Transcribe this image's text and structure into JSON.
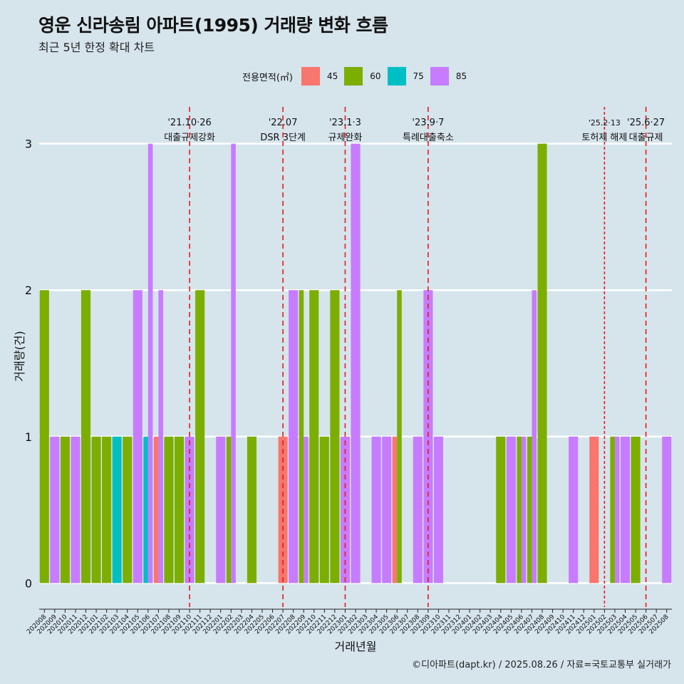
{
  "title": "영운 신라송림 아파트(1995) 거래량 변화 흐름",
  "subtitle": "최근 5년 한정 확대 차트",
  "caption": "©디아파트(dapt.kr) / 2025.08.26 / 자료=국토교통부 실거래가",
  "chart_data": {
    "type": "bar",
    "xlabel": "거래년월",
    "ylabel": "거래량(건)",
    "ylim": [
      -0.12,
      3.3
    ],
    "yticks": [
      0,
      1,
      2,
      3
    ],
    "grid": true,
    "legend": {
      "title": "전용면적(㎡)",
      "position": "top",
      "entries": [
        {
          "name": "45",
          "color": "#F8766D"
        },
        {
          "name": "60",
          "color": "#7CAE00"
        },
        {
          "name": "75",
          "color": "#00BFC4"
        },
        {
          "name": "85",
          "color": "#C77CFF"
        }
      ]
    },
    "categories": [
      "202008",
      "202009",
      "202010",
      "202011",
      "202012",
      "202101",
      "202102",
      "202103",
      "202104",
      "202105",
      "202106",
      "202107",
      "202108",
      "202109",
      "202110",
      "202111",
      "202112",
      "202201",
      "202202",
      "202203",
      "202204",
      "202205",
      "202206",
      "202207",
      "202208",
      "202209",
      "202210",
      "202211",
      "202212",
      "202301",
      "202302",
      "202303",
      "202304",
      "202305",
      "202306",
      "202307",
      "202308",
      "202309",
      "202310",
      "202311",
      "202312",
      "202401",
      "202402",
      "202403",
      "202404",
      "202405",
      "202406",
      "202407",
      "202408",
      "202409",
      "202410",
      "202411",
      "202412",
      "202501",
      "202502",
      "202503",
      "202504",
      "202505",
      "202506",
      "202507",
      "202508"
    ],
    "bars": [
      {
        "month": "202008",
        "45": 0,
        "60": 2,
        "75": 0,
        "85": 0
      },
      {
        "month": "202009",
        "45": 0,
        "60": 0,
        "75": 0,
        "85": 1
      },
      {
        "month": "202010",
        "45": 0,
        "60": 1,
        "75": 0,
        "85": 0
      },
      {
        "month": "202011",
        "45": 0,
        "60": 0,
        "75": 0,
        "85": 1
      },
      {
        "month": "202012",
        "45": 0,
        "60": 2,
        "75": 0,
        "85": 0
      },
      {
        "month": "202101",
        "45": 0,
        "60": 1,
        "75": 0,
        "85": 0
      },
      {
        "month": "202102",
        "45": 0,
        "60": 1,
        "75": 0,
        "85": 0
      },
      {
        "month": "202103",
        "45": 0,
        "60": 0,
        "75": 1,
        "85": 0
      },
      {
        "month": "202104",
        "45": 0,
        "60": 1,
        "75": 0,
        "85": 0
      },
      {
        "month": "202105",
        "45": 0,
        "60": 0,
        "75": 0,
        "85": 2
      },
      {
        "month": "202106",
        "45": 0,
        "60": 0,
        "75": 1,
        "85": 3
      },
      {
        "month": "202107",
        "45": 1,
        "60": 0,
        "75": 0,
        "85": 2
      },
      {
        "month": "202108",
        "45": 0,
        "60": 1,
        "75": 0,
        "85": 0
      },
      {
        "month": "202109",
        "45": 0,
        "60": 1,
        "75": 0,
        "85": 0
      },
      {
        "month": "202110",
        "45": 0,
        "60": 0,
        "75": 0,
        "85": 1
      },
      {
        "month": "202111",
        "45": 0,
        "60": 2,
        "75": 0,
        "85": 0
      },
      {
        "month": "202112",
        "45": 0,
        "60": 0,
        "75": 0,
        "85": 0
      },
      {
        "month": "202201",
        "45": 0,
        "60": 0,
        "75": 0,
        "85": 1
      },
      {
        "month": "202202",
        "45": 0,
        "60": 1,
        "75": 0,
        "85": 3
      },
      {
        "month": "202203",
        "45": 0,
        "60": 0,
        "75": 0,
        "85": 0
      },
      {
        "month": "202204",
        "45": 0,
        "60": 1,
        "75": 0,
        "85": 0
      },
      {
        "month": "202205",
        "45": 0,
        "60": 0,
        "75": 0,
        "85": 0
      },
      {
        "month": "202206",
        "45": 0,
        "60": 0,
        "75": 0,
        "85": 0
      },
      {
        "month": "202207",
        "45": 1,
        "60": 0,
        "75": 0,
        "85": 0
      },
      {
        "month": "202208",
        "45": 0,
        "60": 0,
        "75": 0,
        "85": 2
      },
      {
        "month": "202209",
        "45": 0,
        "60": 2,
        "75": 0,
        "85": 1
      },
      {
        "month": "202210",
        "45": 0,
        "60": 2,
        "75": 0,
        "85": 0
      },
      {
        "month": "202211",
        "45": 0,
        "60": 1,
        "75": 0,
        "85": 0
      },
      {
        "month": "202212",
        "45": 0,
        "60": 2,
        "75": 0,
        "85": 0
      },
      {
        "month": "202301",
        "45": 0,
        "60": 0,
        "75": 0,
        "85": 1
      },
      {
        "month": "202302",
        "45": 0,
        "60": 0,
        "75": 0,
        "85": 3
      },
      {
        "month": "202303",
        "45": 0,
        "60": 0,
        "75": 0,
        "85": 0
      },
      {
        "month": "202304",
        "45": 0,
        "60": 0,
        "75": 0,
        "85": 1
      },
      {
        "month": "202305",
        "45": 0,
        "60": 0,
        "75": 0,
        "85": 1
      },
      {
        "month": "202306",
        "45": 1,
        "60": 2,
        "75": 0,
        "85": 0
      },
      {
        "month": "202307",
        "45": 0,
        "60": 0,
        "75": 0,
        "85": 0
      },
      {
        "month": "202308",
        "45": 0,
        "60": 0,
        "75": 0,
        "85": 1
      },
      {
        "month": "202309",
        "45": 0,
        "60": 0,
        "75": 0,
        "85": 2
      },
      {
        "month": "202310",
        "45": 0,
        "60": 0,
        "75": 0,
        "85": 1
      },
      {
        "month": "202311",
        "45": 0,
        "60": 0,
        "75": 0,
        "85": 0
      },
      {
        "month": "202312",
        "45": 0,
        "60": 0,
        "75": 0,
        "85": 0
      },
      {
        "month": "202401",
        "45": 0,
        "60": 0,
        "75": 0,
        "85": 0
      },
      {
        "month": "202402",
        "45": 0,
        "60": 0,
        "75": 0,
        "85": 0
      },
      {
        "month": "202403",
        "45": 0,
        "60": 0,
        "75": 0,
        "85": 0
      },
      {
        "month": "202404",
        "45": 0,
        "60": 1,
        "75": 0,
        "85": 0
      },
      {
        "month": "202405",
        "45": 0,
        "60": 0,
        "75": 0,
        "85": 1
      },
      {
        "month": "202406",
        "45": 0,
        "60": 1,
        "75": 0,
        "85": 1
      },
      {
        "month": "202407",
        "45": 0,
        "60": 1,
        "75": 0,
        "85": 2
      },
      {
        "month": "202408",
        "45": 0,
        "60": 3,
        "75": 0,
        "85": 0
      },
      {
        "month": "202409",
        "45": 0,
        "60": 0,
        "75": 0,
        "85": 0
      },
      {
        "month": "202410",
        "45": 0,
        "60": 0,
        "75": 0,
        "85": 0
      },
      {
        "month": "202411",
        "45": 0,
        "60": 0,
        "75": 0,
        "85": 1
      },
      {
        "month": "202412",
        "45": 0,
        "60": 0,
        "75": 0,
        "85": 0
      },
      {
        "month": "202501",
        "45": 1,
        "60": 0,
        "75": 0,
        "85": 0
      },
      {
        "month": "202502",
        "45": 0,
        "60": 0,
        "75": 0,
        "85": 0
      },
      {
        "month": "202503",
        "45": 0,
        "60": 1,
        "75": 0,
        "85": 1
      },
      {
        "month": "202504",
        "45": 0,
        "60": 0,
        "75": 0,
        "85": 1
      },
      {
        "month": "202505",
        "45": 0,
        "60": 1,
        "75": 0,
        "85": 0
      },
      {
        "month": "202506",
        "45": 0,
        "60": 0,
        "75": 0,
        "85": 0
      },
      {
        "month": "202507",
        "45": 0,
        "60": 0,
        "75": 0,
        "85": 0
      },
      {
        "month": "202508",
        "45": 0,
        "60": 0,
        "75": 0,
        "85": 1
      }
    ],
    "annotations": [
      {
        "month": "202110",
        "date": "'21.10·26",
        "label": "대출규제강화",
        "dash": "long"
      },
      {
        "month": "202207",
        "date": "'22.07",
        "label": "DSR 3단계",
        "dash": "long"
      },
      {
        "month": "202301",
        "date": "'23.1·3",
        "label": "규제완화",
        "dash": "long"
      },
      {
        "month": "202309",
        "date": "'23.9·7",
        "label": "특례대출축소",
        "dash": "long"
      },
      {
        "month": "202502",
        "date": "'25.2·13",
        "label": "토허제 해제",
        "dash": "short"
      },
      {
        "month": "202506",
        "date": "'25.6·27",
        "label": "대출규제",
        "dash": "long"
      }
    ]
  }
}
